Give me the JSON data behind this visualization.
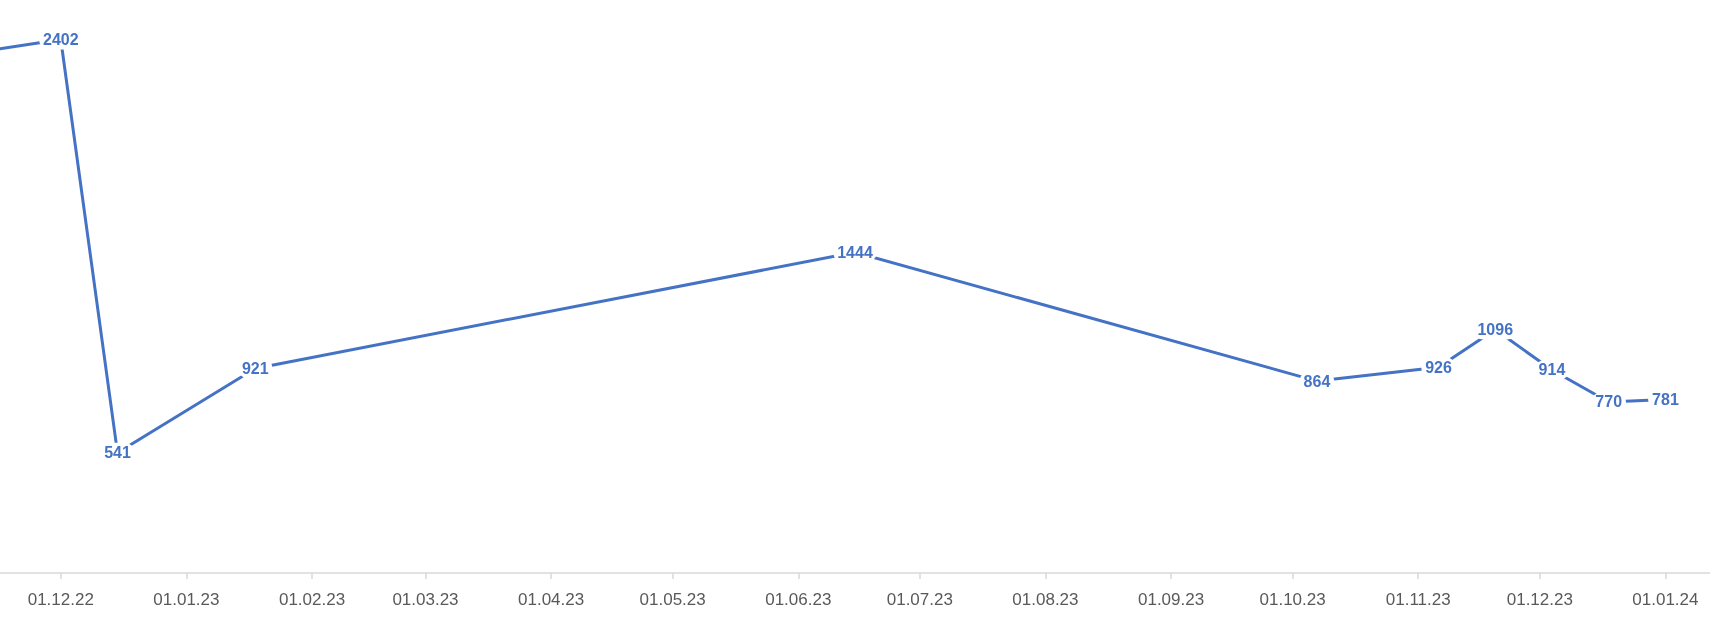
{
  "chart_data": {
    "type": "line",
    "x": [
      "2022-11-16",
      "2022-12-01",
      "2022-12-15",
      "2023-01-18",
      "2023-06-15",
      "2023-10-07",
      "2023-11-06",
      "2023-11-20",
      "2023-12-04",
      "2023-12-18",
      "2024-01-01"
    ],
    "series": [
      {
        "color": "#4472c4",
        "values": [
          2360,
          2402,
          541,
          921,
          1444,
          864,
          926,
          1096,
          914,
          770,
          781
        ],
        "value_labels": [
          null,
          "2402",
          "541",
          "921",
          "1444",
          "864",
          "926",
          "1096",
          "914",
          "770",
          "781"
        ]
      }
    ],
    "xlim": [
      "2022-11-16",
      "2024-01-12"
    ],
    "xticks": [
      {
        "value": "2022-12-01",
        "label": "01.12.22"
      },
      {
        "value": "2023-01-01",
        "label": "01.01.23"
      },
      {
        "value": "2023-02-01",
        "label": "01.02.23"
      },
      {
        "value": "2023-03-01",
        "label": "01.03.23"
      },
      {
        "value": "2023-04-01",
        "label": "01.04.23"
      },
      {
        "value": "2023-05-01",
        "label": "01.05.23"
      },
      {
        "value": "2023-06-01",
        "label": "01.06.23"
      },
      {
        "value": "2023-07-01",
        "label": "01.07.23"
      },
      {
        "value": "2023-08-01",
        "label": "01.08.23"
      },
      {
        "value": "2023-09-01",
        "label": "01.09.23"
      },
      {
        "value": "2023-10-01",
        "label": "01.10.23"
      },
      {
        "value": "2023-11-01",
        "label": "01.11.23"
      },
      {
        "value": "2023-12-01",
        "label": "01.12.23"
      },
      {
        "value": "2024-01-01",
        "label": "01.01.24"
      }
    ],
    "tick_labels": "x",
    "grid": false,
    "marker": "none",
    "line_style": "solid"
  }
}
